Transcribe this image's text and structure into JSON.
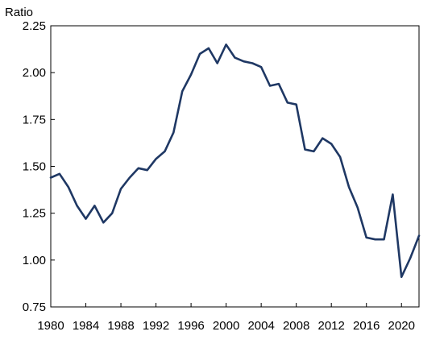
{
  "chart_data": {
    "type": "line",
    "ylabel": "Ratio",
    "xlim": [
      1980,
      2022
    ],
    "ylim": [
      0.75,
      2.25
    ],
    "yticks": [
      "0.75",
      "1.00",
      "1.25",
      "1.50",
      "1.75",
      "2.00",
      "2.25"
    ],
    "xticks": [
      "1980",
      "1984",
      "1988",
      "1992",
      "1996",
      "2000",
      "2004",
      "2008",
      "2012",
      "2016",
      "2020"
    ],
    "grid": false,
    "line_color": "#1f3864",
    "series": [
      {
        "x": [
          1980,
          1981,
          1982,
          1983,
          1984,
          1985,
          1986,
          1987,
          1988,
          1989,
          1990,
          1991,
          1992,
          1993,
          1994,
          1995,
          1996,
          1997,
          1998,
          1999,
          2000,
          2001,
          2002,
          2003,
          2004,
          2005,
          2006,
          2007,
          2008,
          2009,
          2010,
          2011,
          2012,
          2013,
          2014,
          2015,
          2016,
          2017,
          2018,
          2019,
          2020,
          2021,
          2022
        ],
        "values": [
          1.44,
          1.46,
          1.39,
          1.29,
          1.22,
          1.29,
          1.2,
          1.25,
          1.38,
          1.44,
          1.49,
          1.48,
          1.54,
          1.58,
          1.68,
          1.9,
          1.99,
          2.1,
          2.13,
          2.05,
          2.15,
          2.08,
          2.06,
          2.05,
          2.03,
          1.93,
          1.94,
          1.84,
          1.83,
          1.59,
          1.58,
          1.65,
          1.62,
          1.55,
          1.39,
          1.28,
          1.12,
          1.11,
          1.11,
          1.35,
          0.91,
          1.01,
          1.13
        ]
      }
    ]
  }
}
